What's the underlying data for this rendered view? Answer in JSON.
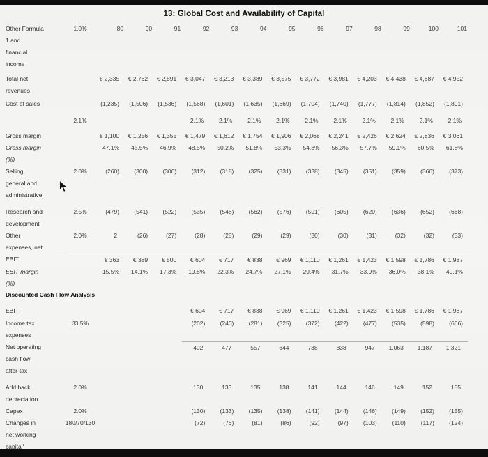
{
  "title": "13: Global Cost and Availability of Capital",
  "colors": {
    "screen_bar": "#0d0d0d",
    "background": "#f3f3f1",
    "text": "#3d3d3d",
    "sum_line": "#b3b3b0"
  },
  "table": {
    "header": {
      "label_lines": [
        "Other Formula",
        "1 and",
        "financial",
        "income"
      ],
      "assumption": "1.0%",
      "columns": [
        "80",
        "90",
        "91",
        "92",
        "93",
        "94",
        "95",
        "96",
        "97",
        "98",
        "99",
        "100",
        "101"
      ],
      "h": 72
    },
    "rows": [
      {
        "label_lines": [
          "Total net",
          "revenues"
        ],
        "values": [
          "€ 2,335",
          "€ 2,762",
          "€ 2,891",
          "€ 3,047",
          "€ 3,213",
          "€ 3,389",
          "€ 3,575",
          "€ 3,772",
          "€ 3,981",
          "€ 4,203",
          "€ 4,438",
          "€ 4,687",
          "€ 4,952"
        ],
        "h": 36
      },
      {
        "label_lines": [
          "Cost of sales"
        ],
        "assumption": "2.1%",
        "assumption_line": 2,
        "values": [
          "(1,235)",
          "(1,506)",
          "(1,536)",
          "(1,568)",
          "(1,601)",
          "(1,635)",
          "(1,669)",
          "(1,704)",
          "(1,740)",
          "(1,777)",
          "(1,814)",
          "(1,852)",
          "(1,891)"
        ],
        "values2": [
          "",
          "",
          "",
          "2.1%",
          "2.1%",
          "2.1%",
          "2.1%",
          "2.1%",
          "2.1%",
          "2.1%",
          "2.1%",
          "2.1%",
          "2.1%"
        ],
        "h": 46
      },
      {
        "label_lines": [
          "Gross margin"
        ],
        "values": [
          "€ 1,100",
          "€ 1,256",
          "€ 1,355",
          "€ 1,479",
          "€ 1,612",
          "€ 1,754",
          "€ 1,906",
          "€ 2,068",
          "€ 2,241",
          "€ 2,426",
          "€ 2,624",
          "€ 2,836",
          "€ 3,061"
        ],
        "h": 17
      },
      {
        "label_lines": [
          "Gross margin",
          "(%)"
        ],
        "italic": true,
        "values": [
          "47.1%",
          "45.5%",
          "46.9%",
          "48.5%",
          "50.2%",
          "51.8%",
          "53.3%",
          "54.8%",
          "56.3%",
          "57.7%",
          "59.1%",
          "60.5%",
          "61.8%"
        ],
        "h": 28
      },
      {
        "label_lines": [
          "Selling,",
          "general and",
          "administrative"
        ],
        "assumption": "2.0%",
        "values": [
          "(260)",
          "(300)",
          "(306)",
          "(312)",
          "(318)",
          "(325)",
          "(331)",
          "(338)",
          "(345)",
          "(351)",
          "(359)",
          "(366)",
          "(373)"
        ],
        "h": 58
      },
      {
        "label_lines": [
          "Research and",
          "development"
        ],
        "assumption": "2.5%",
        "values": [
          "(479)",
          "(541)",
          "(522)",
          "(535)",
          "(548)",
          "(562)",
          "(576)",
          "(591)",
          "(605)",
          "(620)",
          "(636)",
          "(652)",
          "(668)"
        ],
        "h": 28
      },
      {
        "label_lines": [
          "Other",
          "expenses, net"
        ],
        "assumption": "2.0%",
        "values": [
          "2",
          "(26)",
          "(27)",
          "(28)",
          "(28)",
          "(29)",
          "(29)",
          "(30)",
          "(30)",
          "(31)",
          "(32)",
          "(32)",
          "(33)"
        ],
        "h": 30
      },
      {
        "label_lines": [
          "EBIT"
        ],
        "topline_from": -1,
        "values": [
          "€ 363",
          "€ 389",
          "€ 500",
          "€ 604",
          "€ 717",
          "€ 838",
          "€ 969",
          "€ 1,110",
          "€ 1,261",
          "€ 1,423",
          "€ 1,598",
          "€ 1,786",
          "€ 1,987"
        ],
        "h": 17
      },
      {
        "label_lines": [
          "EBIT margin",
          "(%)"
        ],
        "italic": true,
        "values": [
          "15.5%",
          "14.1%",
          "17.3%",
          "19.8%",
          "22.3%",
          "24.7%",
          "27.1%",
          "29.4%",
          "31.7%",
          "33.9%",
          "36.0%",
          "38.1%",
          "40.1%"
        ],
        "h": 28
      },
      {
        "section": true,
        "label_lines": [
          "Discounted Cash Flow Analysis"
        ],
        "h": 22
      },
      {
        "label_lines": [
          "EBIT"
        ],
        "values": [
          "",
          "",
          "",
          "€ 604",
          "€ 717",
          "€ 838",
          "€ 969",
          "€ 1,110",
          "€ 1,261",
          "€ 1,423",
          "€ 1,598",
          "€ 1,786",
          "€ 1,987"
        ],
        "h": 18
      },
      {
        "label_lines": [
          "Income tax",
          "expenses"
        ],
        "assumption": "33.5%",
        "values": [
          "",
          "",
          "",
          "(202)",
          "(240)",
          "(281)",
          "(325)",
          "(372)",
          "(422)",
          "(477)",
          "(535)",
          "(598)",
          "(666)"
        ],
        "h": 34
      },
      {
        "label_lines": [
          "Net operating",
          "cash flow",
          "after-tax"
        ],
        "topline_from": 3,
        "values": [
          "",
          "",
          "",
          "402",
          "477",
          "557",
          "644",
          "738",
          "838",
          "947",
          "1,063",
          "1,187",
          "1,321"
        ],
        "h": 58
      },
      {
        "label_lines": [
          "Add back",
          "depreciation"
        ],
        "assumption": "2.0%",
        "values": [
          "",
          "",
          "",
          "130",
          "133",
          "135",
          "138",
          "141",
          "144",
          "146",
          "149",
          "152",
          "155"
        ],
        "h": 34
      },
      {
        "label_lines": [
          "Capex"
        ],
        "assumption": "2.0%",
        "values": [
          "",
          "",
          "",
          "(130)",
          "(133)",
          "(135)",
          "(138)",
          "(141)",
          "(144)",
          "(146)",
          "(149)",
          "(152)",
          "(155)"
        ],
        "h": 17
      },
      {
        "label_lines": [
          "Changes in",
          "net working",
          "capital'"
        ],
        "assumption": "180/70/130",
        "values": [
          "",
          "",
          "",
          "(72)",
          "(76)",
          "(81)",
          "(86)",
          "(92)",
          "(97)",
          "(103)",
          "(110)",
          "(117)",
          "(124)"
        ],
        "h": 50
      }
    ]
  }
}
